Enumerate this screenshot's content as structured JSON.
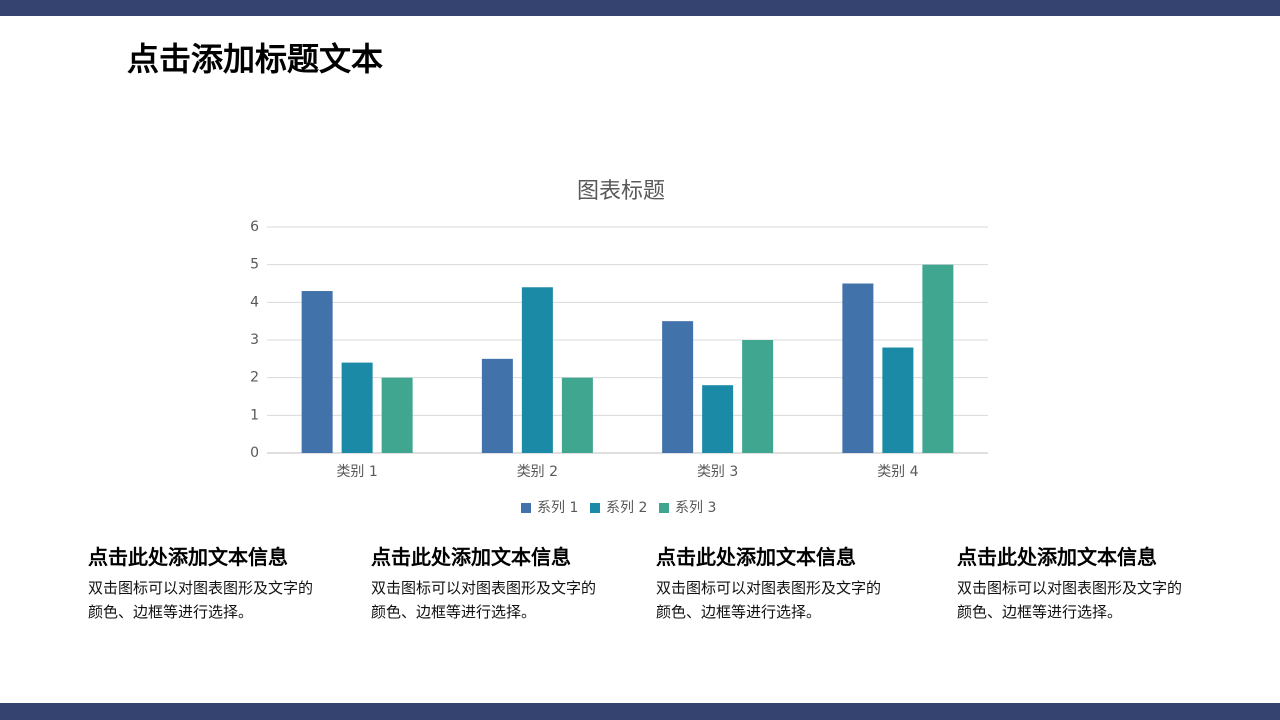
{
  "slide_title": "点击添加标题文本",
  "chart_data": {
    "type": "bar",
    "title": "图表标题",
    "categories": [
      "类别 1",
      "类别 2",
      "类别 3",
      "类别 4"
    ],
    "series": [
      {
        "name": "系列 1",
        "color": "#4172a9",
        "values": [
          4.3,
          2.5,
          3.5,
          4.5
        ]
      },
      {
        "name": "系列 2",
        "color": "#1b8aa6",
        "values": [
          2.4,
          4.4,
          1.8,
          2.8
        ]
      },
      {
        "name": "系列 3",
        "color": "#41a690",
        "values": [
          2,
          2,
          3,
          5
        ]
      }
    ],
    "ylim": [
      0,
      6
    ],
    "yticks": [
      0,
      1,
      2,
      3,
      4,
      5,
      6
    ],
    "grid": true,
    "legend": "bottom"
  },
  "text_blocks": [
    {
      "heading": "点击此处添加文本信息",
      "body": "双击图标可以对图表图形及文字的颜色、边框等进行选择。"
    },
    {
      "heading": "点击此处添加文本信息",
      "body": "双击图标可以对图表图形及文字的颜色、边框等进行选择。"
    },
    {
      "heading": "点击此处添加文本信息",
      "body": "双击图标可以对图表图形及文字的颜色、边框等进行选择。"
    },
    {
      "heading": "点击此处添加文本信息",
      "body": "双击图标可以对图表图形及文字的颜色、边框等进行选择。"
    }
  ]
}
